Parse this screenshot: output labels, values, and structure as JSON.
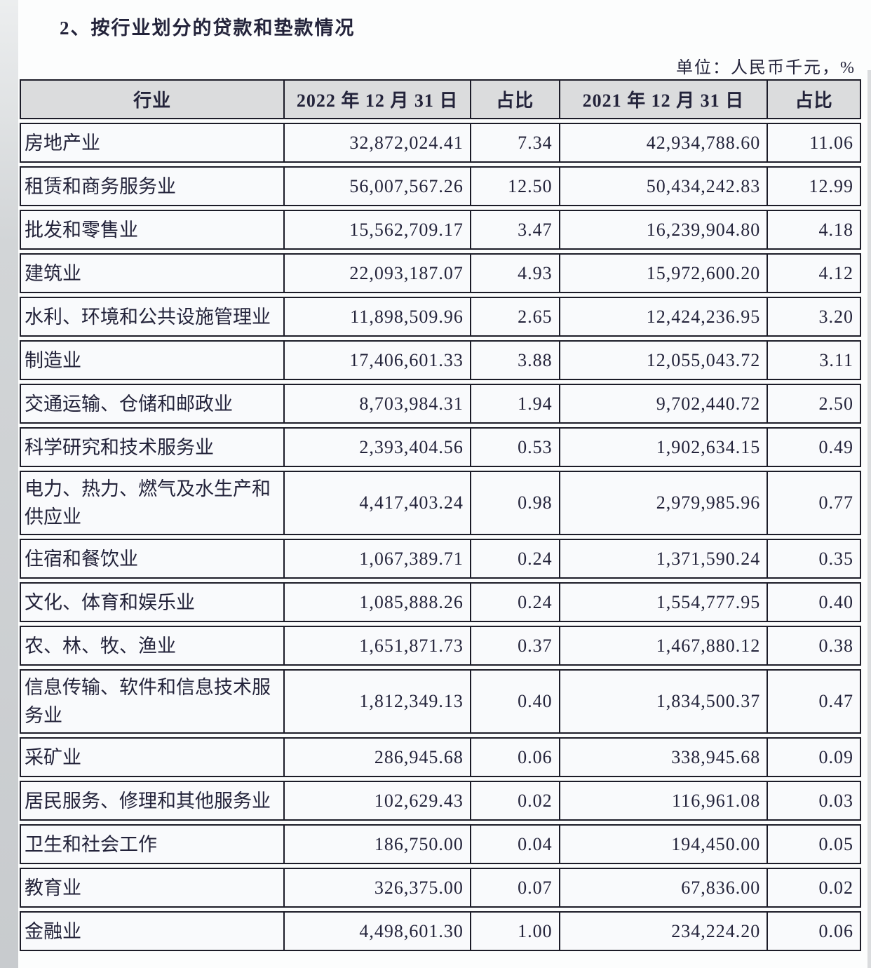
{
  "page": {
    "title": "2、按行业划分的贷款和垫款情况",
    "unit_note": "单位：人民币千元，%"
  },
  "table": {
    "headers": {
      "industry": "行业",
      "date_2022": "2022 年 12 月 31 日",
      "ratio_2022": "占比",
      "date_2021": "2021 年 12 月 31 日",
      "ratio_2021": "占比"
    },
    "rows": [
      {
        "industry": "房地产业",
        "v2022": "32,872,024.41",
        "p2022": "7.34",
        "v2021": "42,934,788.60",
        "p2021": "11.06"
      },
      {
        "industry": "租赁和商务服务业",
        "v2022": "56,007,567.26",
        "p2022": "12.50",
        "v2021": "50,434,242.83",
        "p2021": "12.99"
      },
      {
        "industry": "批发和零售业",
        "v2022": "15,562,709.17",
        "p2022": "3.47",
        "v2021": "16,239,904.80",
        "p2021": "4.18"
      },
      {
        "industry": "建筑业",
        "v2022": "22,093,187.07",
        "p2022": "4.93",
        "v2021": "15,972,600.20",
        "p2021": "4.12"
      },
      {
        "industry": "水利、环境和公共设施管理业",
        "v2022": "11,898,509.96",
        "p2022": "2.65",
        "v2021": "12,424,236.95",
        "p2021": "3.20"
      },
      {
        "industry": "制造业",
        "v2022": "17,406,601.33",
        "p2022": "3.88",
        "v2021": "12,055,043.72",
        "p2021": "3.11"
      },
      {
        "industry": "交通运输、仓储和邮政业",
        "v2022": "8,703,984.31",
        "p2022": "1.94",
        "v2021": "9,702,440.72",
        "p2021": "2.50"
      },
      {
        "industry": "科学研究和技术服务业",
        "v2022": "2,393,404.56",
        "p2022": "0.53",
        "v2021": "1,902,634.15",
        "p2021": "0.49"
      },
      {
        "industry": "电力、热力、燃气及水生产和供应业",
        "v2022": "4,417,403.24",
        "p2022": "0.98",
        "v2021": "2,979,985.96",
        "p2021": "0.77"
      },
      {
        "industry": "住宿和餐饮业",
        "v2022": "1,067,389.71",
        "p2022": "0.24",
        "v2021": "1,371,590.24",
        "p2021": "0.35"
      },
      {
        "industry": "文化、体育和娱乐业",
        "v2022": "1,085,888.26",
        "p2022": "0.24",
        "v2021": "1,554,777.95",
        "p2021": "0.40"
      },
      {
        "industry": "农、林、牧、渔业",
        "v2022": "1,651,871.73",
        "p2022": "0.37",
        "v2021": "1,467,880.12",
        "p2021": "0.38"
      },
      {
        "industry": "信息传输、软件和信息技术服务业",
        "v2022": "1,812,349.13",
        "p2022": "0.40",
        "v2021": "1,834,500.37",
        "p2021": "0.47"
      },
      {
        "industry": "采矿业",
        "v2022": "286,945.68",
        "p2022": "0.06",
        "v2021": "338,945.68",
        "p2021": "0.09"
      },
      {
        "industry": "居民服务、修理和其他服务业",
        "v2022": "102,629.43",
        "p2022": "0.02",
        "v2021": "116,961.08",
        "p2021": "0.03"
      },
      {
        "industry": "卫生和社会工作",
        "v2022": "186,750.00",
        "p2022": "0.04",
        "v2021": "194,450.00",
        "p2021": "0.05"
      },
      {
        "industry": "教育业",
        "v2022": "326,375.00",
        "p2022": "0.07",
        "v2021": "67,836.00",
        "p2021": "0.02"
      },
      {
        "industry": "金融业",
        "v2022": "4,498,601.30",
        "p2022": "1.00",
        "v2021": "234,224.20",
        "p2021": "0.06"
      }
    ]
  },
  "colors": {
    "page_bg": "#fcfdfd",
    "cell_bg": "#f9fafc",
    "header_bg": "#dbdcdd",
    "border": "#1c1c28",
    "text": "#23233a",
    "edge_shadow": "#c8cbce"
  }
}
